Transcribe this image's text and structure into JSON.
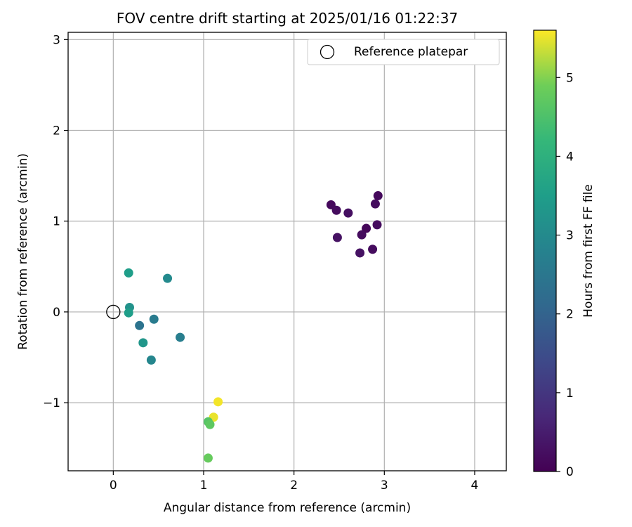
{
  "chart_data": {
    "type": "scatter",
    "title": "FOV centre drift starting at 2025/01/16 01:22:37",
    "xlabel": "Angular distance from reference (arcmin)",
    "ylabel": "Rotation from reference (arcmin)",
    "xlim": [
      -0.5,
      4.35
    ],
    "ylim": [
      -1.75,
      3.08
    ],
    "xticks": [
      0,
      1,
      2,
      3,
      4
    ],
    "yticks": [
      -1,
      0,
      1,
      2,
      3
    ],
    "xtick_labels": [
      "0",
      "1",
      "2",
      "3",
      "4"
    ],
    "ytick_labels": [
      "−1",
      "0",
      "1",
      "2",
      "3"
    ],
    "grid": true,
    "legend": {
      "position": "top-right",
      "entries": [
        {
          "label": "Reference platepar",
          "marker": "open-circle"
        }
      ]
    },
    "reference_point": {
      "x": 0,
      "y": 0
    },
    "colorbar": {
      "label": "Hours from first FF file",
      "colormap": "viridis",
      "range": [
        0,
        5.6
      ],
      "ticks": [
        0,
        1,
        2,
        3,
        4,
        5
      ],
      "tick_labels": [
        "0",
        "1",
        "2",
        "3",
        "4",
        "5"
      ]
    },
    "points": [
      {
        "x": 2.41,
        "y": 1.18,
        "hours": 0.15
      },
      {
        "x": 2.47,
        "y": 1.12,
        "hours": 0.2
      },
      {
        "x": 2.6,
        "y": 1.09,
        "hours": 0.25
      },
      {
        "x": 2.48,
        "y": 0.82,
        "hours": 0.3
      },
      {
        "x": 2.8,
        "y": 0.92,
        "hours": 0.1
      },
      {
        "x": 2.75,
        "y": 0.85,
        "hours": 0.2
      },
      {
        "x": 2.93,
        "y": 1.28,
        "hours": 0.15
      },
      {
        "x": 2.9,
        "y": 1.19,
        "hours": 0.2
      },
      {
        "x": 2.92,
        "y": 0.96,
        "hours": 0.2
      },
      {
        "x": 2.73,
        "y": 0.65,
        "hours": 0.3
      },
      {
        "x": 2.87,
        "y": 0.69,
        "hours": 0.2
      },
      {
        "x": 0.17,
        "y": 0.43,
        "hours": 3.5
      },
      {
        "x": 0.6,
        "y": 0.37,
        "hours": 3.0
      },
      {
        "x": 0.18,
        "y": 0.05,
        "hours": 3.2
      },
      {
        "x": 0.17,
        "y": -0.01,
        "hours": 3.5
      },
      {
        "x": 0.29,
        "y": -0.15,
        "hours": 2.4
      },
      {
        "x": 0.45,
        "y": -0.08,
        "hours": 2.6
      },
      {
        "x": 0.33,
        "y": -0.34,
        "hours": 3.3
      },
      {
        "x": 0.74,
        "y": -0.28,
        "hours": 2.7
      },
      {
        "x": 0.42,
        "y": -0.53,
        "hours": 2.9
      },
      {
        "x": 1.16,
        "y": -0.99,
        "hours": 5.55
      },
      {
        "x": 1.11,
        "y": -1.16,
        "hours": 5.5
      },
      {
        "x": 1.05,
        "y": -1.21,
        "hours": 4.6
      },
      {
        "x": 1.07,
        "y": -1.24,
        "hours": 4.7
      },
      {
        "x": 1.05,
        "y": -1.61,
        "hours": 4.8
      }
    ]
  }
}
